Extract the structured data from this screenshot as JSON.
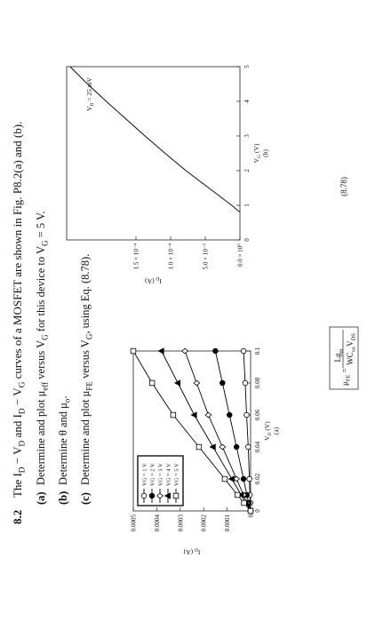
{
  "problem": {
    "number": "8.2",
    "intro": [
      "The I",
      "D",
      " − V",
      "D",
      " and I",
      "D",
      " − V",
      "G",
      " curves of a MOSFET are shown in Fig. P8.2(a) and (b)."
    ],
    "items": [
      {
        "label": "(a)",
        "text": [
          "Determine and plot μ",
          "eff",
          " versus V",
          "G",
          " for this device to V",
          "G",
          " = 5 V."
        ]
      },
      {
        "label": "(b)",
        "text": [
          "Determine θ and μ",
          "o",
          "."
        ]
      },
      {
        "label": "(c)",
        "text": [
          "Determine and plot μ",
          "FE",
          " versus V",
          "G",
          ", using Eq. (8.78)."
        ]
      }
    ]
  },
  "chart_data": [
    {
      "type": "line",
      "subtitle": "(a)",
      "xlabel": [
        "V",
        "D",
        " (V)"
      ],
      "ylabel": [
        "I",
        "D",
        " (A)"
      ],
      "x": [
        0,
        0.005,
        0.01,
        0.02,
        0.04,
        0.06,
        0.08,
        0.1
      ],
      "xlim": [
        0,
        0.1
      ],
      "ylim": [
        0,
        0.0005
      ],
      "xticks": [
        0,
        0.02,
        0.04,
        0.06,
        0.08,
        0.1
      ],
      "yticks": [
        0,
        0.0001,
        0.0002,
        0.0003,
        0.0004,
        0.0005
      ],
      "legend": "upper left",
      "series": [
        {
          "name": "VG = 1 V",
          "color": "#000000",
          "marker": "circle-open",
          "values": [
            0,
            1e-06,
            3e-06,
            5e-06,
            1e-05,
            1.7e-05,
            2.3e-05,
            3e-05
          ]
        },
        {
          "name": "VG = 2 V",
          "color": "#000000",
          "marker": "circle-filled",
          "values": [
            0,
            8e-06,
            1.6e-05,
            3e-05,
            6e-05,
            9e-05,
            0.00012,
            0.00015
          ]
        },
        {
          "name": "VG = 3 V",
          "color": "#000000",
          "marker": "diamond-open",
          "values": [
            0,
            1.5e-05,
            3e-05,
            6e-05,
            0.00012,
            0.00018,
            0.00023,
            0.00028
          ]
        },
        {
          "name": "VG = 4 V",
          "color": "#000000",
          "marker": "triangle-filled",
          "values": [
            0,
            2e-05,
            4e-05,
            8e-05,
            0.00016,
            0.00024,
            0.00031,
            0.00038
          ]
        },
        {
          "name": "VG = 5 V",
          "color": "#000000",
          "marker": "square-open",
          "values": [
            0,
            2.8e-05,
            5.6e-05,
            0.00011,
            0.00022,
            0.00033,
            0.00042,
            0.0005
          ]
        }
      ]
    },
    {
      "type": "line",
      "subtitle": "(b)",
      "xlabel": [
        "V",
        "G",
        " (V)"
      ],
      "ylabel": [
        "I",
        "D",
        " (A)"
      ],
      "annotation": [
        "V",
        "D",
        " = 25 mV"
      ],
      "x": [
        0.8,
        1,
        1.5,
        2,
        2.5,
        3,
        3.5,
        4,
        4.5,
        5
      ],
      "xlim": [
        0,
        5
      ],
      "ylim": [
        0,
        0.00025
      ],
      "xticks": [
        0,
        1,
        2,
        3,
        4,
        5
      ],
      "yticks": [
        {
          "value": 0,
          "label": "0.0 × 10⁰"
        },
        {
          "value": 5e-05,
          "label": "5.0 × 10⁻⁵"
        },
        {
          "value": 0.0001,
          "label": "1.0 × 10⁻⁴"
        },
        {
          "value": 0.00015,
          "label": "1.5 × 10⁻⁴"
        }
      ],
      "series": [
        {
          "color": "#000000",
          "values": [
            0,
            1.2e-05,
            4.5e-05,
            7.8e-05,
            0.000108,
            0.000137,
            0.000165,
            0.000193,
            0.00022,
            0.000245
          ]
        }
      ]
    }
  ],
  "equation": {
    "lhs": [
      "μ",
      "FE",
      " ="
    ],
    "numerator": [
      "Lg",
      "m"
    ],
    "denominator": [
      "WC",
      "ox",
      "V",
      "DS"
    ],
    "number": "(8.78)"
  }
}
